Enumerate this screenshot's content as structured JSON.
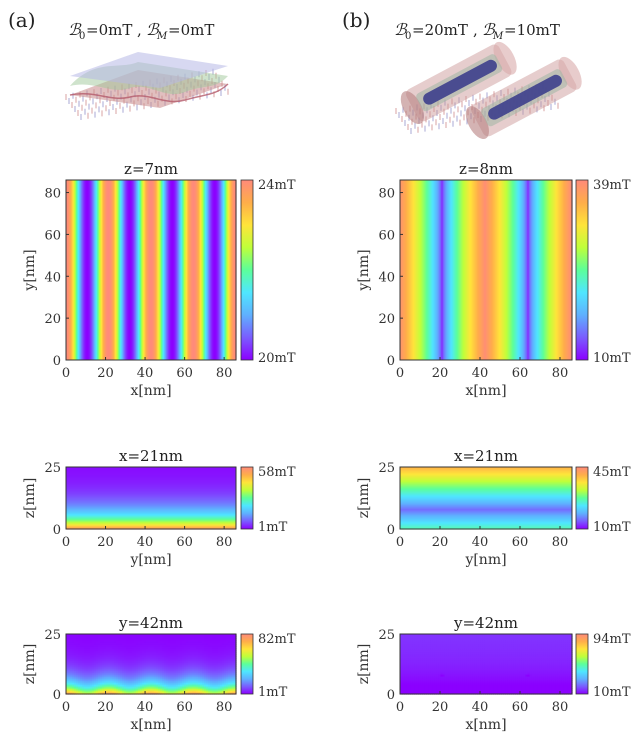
{
  "panel_labels": [
    "(a)",
    "(b)"
  ],
  "panel_headers": [
    {
      "b0_value": "=0mT",
      "bm_value": "=0mT"
    },
    {
      "b0_value": "=20mT",
      "bm_value": "=10mT"
    }
  ],
  "colors": {
    "rainbow": [
      "#8b00ff",
      "#7a5cff",
      "#5fb0ff",
      "#4fe6ff",
      "#5cff9a",
      "#bfff3a",
      "#ffe43a",
      "#ffad4a",
      "#ff8a7a"
    ],
    "axis": "#333333"
  },
  "chart_data": [
    {
      "id": "a-top",
      "type": "heatmap",
      "title": "z=7nm",
      "xlabel": "x[nm]",
      "ylabel": "y[nm]",
      "xlim": [
        0,
        86
      ],
      "ylim": [
        0,
        86
      ],
      "xticks": [
        0,
        20,
        40,
        60,
        80
      ],
      "yticks": [
        0,
        20,
        40,
        60,
        80
      ],
      "colorbar": {
        "min": 20,
        "max": 24,
        "min_label": "20mT",
        "max_label": "24mT"
      },
      "pattern": "stripes-x",
      "period_nm": 21.5,
      "offset_nm": 0
    },
    {
      "id": "b-top",
      "type": "heatmap",
      "title": "z=8nm",
      "xlabel": "x[nm]",
      "ylabel": "y[nm]",
      "xlim": [
        0,
        86
      ],
      "ylim": [
        0,
        86
      ],
      "xticks": [
        0,
        20,
        40,
        60,
        80
      ],
      "yticks": [
        0,
        20,
        40,
        60,
        80
      ],
      "colorbar": {
        "min": 10,
        "max": 39,
        "min_label": "10mT",
        "max_label": "39mT"
      },
      "pattern": "minima-x",
      "minima_x_nm": [
        21,
        64
      ]
    },
    {
      "id": "a-mid",
      "type": "heatmap",
      "title": "x=21nm",
      "xlabel": "y[nm]",
      "ylabel": "z[nm]",
      "xlim": [
        0,
        86
      ],
      "ylim": [
        0,
        25
      ],
      "xticks": [
        0,
        20,
        40,
        60,
        80
      ],
      "yticks": [
        0,
        25
      ],
      "colorbar": {
        "min": 1,
        "max": 58,
        "min_label": "1mT",
        "max_label": "58mT"
      },
      "pattern": "decay-z"
    },
    {
      "id": "b-mid",
      "type": "heatmap",
      "title": "x=21nm",
      "xlabel": "y[nm]",
      "ylabel": "z[nm]",
      "xlim": [
        0,
        86
      ],
      "ylim": [
        0,
        25
      ],
      "xticks": [
        0,
        20,
        40,
        60,
        80
      ],
      "yticks": [
        0,
        25
      ],
      "colorbar": {
        "min": 10,
        "max": 45,
        "min_label": "10mT",
        "max_label": "45mT"
      },
      "pattern": "band-z",
      "band_z_nm": 8
    },
    {
      "id": "a-bot",
      "type": "heatmap",
      "title": "y=42nm",
      "xlabel": "x[nm]",
      "ylabel": "z[nm]",
      "xlim": [
        0,
        86
      ],
      "ylim": [
        0,
        25
      ],
      "xticks": [
        0,
        20,
        40,
        60,
        80
      ],
      "yticks": [
        0,
        25
      ],
      "colorbar": {
        "min": 1,
        "max": 82,
        "min_label": "1mT",
        "max_label": "82mT"
      },
      "pattern": "decay-z-ripple"
    },
    {
      "id": "b-bot",
      "type": "heatmap",
      "title": "y=42nm",
      "xlabel": "x[nm]",
      "ylabel": "z[nm]",
      "xlim": [
        0,
        86
      ],
      "ylim": [
        0,
        25
      ],
      "xticks": [
        0,
        20,
        40,
        60,
        80
      ],
      "yticks": [
        0,
        25
      ],
      "colorbar": {
        "min": 10,
        "max": 94,
        "min_label": "10mT",
        "max_label": "94mT"
      },
      "pattern": "tubes-xz",
      "tube_centers_nm": [
        [
          21,
          8
        ],
        [
          64,
          8
        ]
      ]
    }
  ]
}
